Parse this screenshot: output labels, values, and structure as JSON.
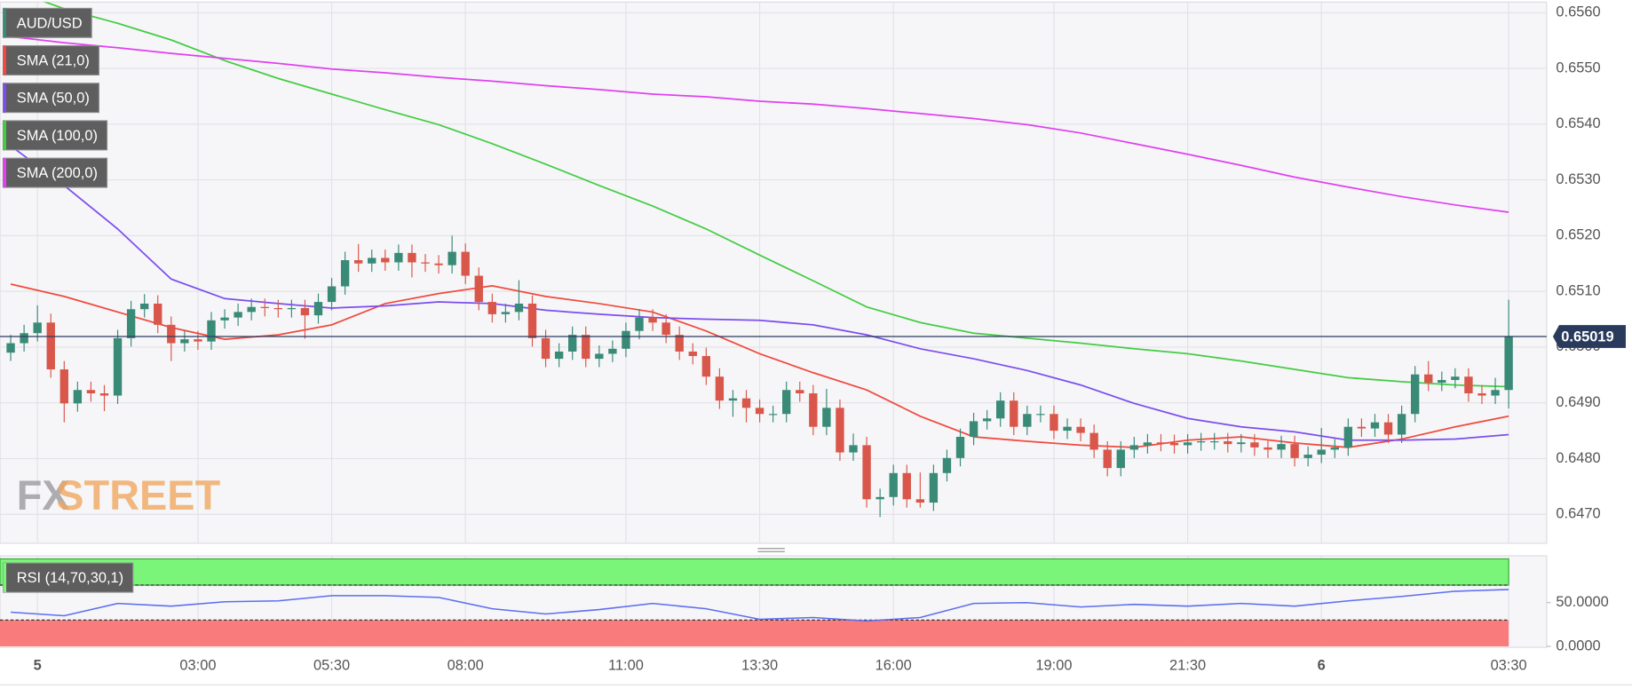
{
  "chart_data": [
    {
      "type": "candlestick",
      "name": "AUD/USD",
      "up_color": "#3a8a78",
      "down_color": "#d9574a",
      "watermark": [
        "FX",
        "STREET"
      ],
      "x": [
        -0.5,
        -0.25,
        0,
        0.25,
        0.5,
        0.75,
        1,
        1.25,
        1.5,
        1.75,
        2,
        2.25,
        2.5,
        2.75,
        3,
        3.25,
        3.5,
        3.75,
        4,
        4.25,
        4.5,
        4.75,
        5,
        5.25,
        5.5,
        5.75,
        6,
        6.25,
        6.5,
        6.75,
        7,
        7.25,
        7.5,
        7.75,
        8,
        8.25,
        8.5,
        8.75,
        9,
        9.25,
        9.5,
        9.75,
        10,
        10.25,
        10.5,
        10.75,
        11,
        11.25,
        11.5,
        11.75,
        12,
        12.25,
        12.5,
        12.75,
        13,
        13.25,
        13.5,
        13.75,
        14,
        14.25,
        14.5,
        14.75,
        15,
        15.25,
        15.5,
        15.75,
        16,
        16.25,
        16.5,
        16.75,
        17,
        17.25,
        17.5,
        17.75,
        18,
        18.25,
        18.5,
        18.75,
        19,
        19.25,
        19.5,
        19.75,
        20,
        20.25,
        20.5,
        20.75,
        21,
        21.25,
        21.5,
        21.75,
        22,
        22.25,
        22.5,
        22.75,
        23,
        23.25,
        23.5,
        23.75,
        24,
        24.25,
        24.5,
        24.75,
        25,
        25.25,
        25.5,
        25.75,
        26,
        26.25,
        26.5,
        26.75,
        27,
        27.25,
        27.5
      ],
      "open": [
        0.6499,
        0.65007,
        0.65025,
        0.65044,
        0.6496,
        0.64899,
        0.64923,
        0.64917,
        0.64913,
        0.65016,
        0.65068,
        0.65078,
        0.6504,
        0.65007,
        0.65014,
        0.6501,
        0.65048,
        0.65053,
        0.65063,
        0.65072,
        0.6507,
        0.65068,
        0.6507,
        0.65057,
        0.65081,
        0.65109,
        0.65156,
        0.6515,
        0.6516,
        0.65152,
        0.65169,
        0.65152,
        0.6515,
        0.65147,
        0.65171,
        0.65128,
        0.65081,
        0.65059,
        0.65063,
        0.65078,
        0.65016,
        0.64979,
        0.64992,
        0.65022,
        0.64979,
        0.64988,
        0.64997,
        0.65029,
        0.65053,
        0.65044,
        0.65022,
        0.64992,
        0.64984,
        0.64947,
        0.64904,
        0.64908,
        0.64891,
        0.6488,
        0.6488,
        0.64923,
        0.64917,
        0.64857,
        0.64891,
        0.64811,
        0.64824,
        0.64727,
        0.64731,
        0.64774,
        0.64727,
        0.64721,
        0.64774,
        0.64801,
        0.64839,
        0.64867,
        0.64872,
        0.64904,
        0.64857,
        0.6488,
        0.6488,
        0.6485,
        0.64857,
        0.64846,
        0.64816,
        0.64783,
        0.64816,
        0.64824,
        0.64829,
        0.64828,
        0.64824,
        0.64829,
        0.64831,
        0.64831,
        0.64826,
        0.64829,
        0.6482,
        0.64816,
        0.64826,
        0.64801,
        0.64807,
        0.64816,
        0.6482,
        0.64857,
        0.64854,
        0.64865,
        0.64843,
        0.6488,
        0.64951,
        0.64936,
        0.64941,
        0.64947,
        0.64917,
        0.64913,
        0.64923
      ],
      "high": [
        0.65022,
        0.6504,
        0.65075,
        0.6506,
        0.64975,
        0.64938,
        0.64938,
        0.64932,
        0.65031,
        0.65083,
        0.65095,
        0.65093,
        0.65055,
        0.65029,
        0.65029,
        0.65063,
        0.65068,
        0.65078,
        0.65087,
        0.65087,
        0.65085,
        0.65085,
        0.65085,
        0.65096,
        0.65124,
        0.65171,
        0.65185,
        0.65175,
        0.65175,
        0.65184,
        0.65184,
        0.65167,
        0.65165,
        0.652,
        0.65186,
        0.65143,
        0.65096,
        0.65078,
        0.6512,
        0.65093,
        0.65031,
        0.65007,
        0.65037,
        0.65037,
        0.65003,
        0.65012,
        0.65044,
        0.65068,
        0.65068,
        0.65059,
        0.65037,
        0.65007,
        0.64999,
        0.64962,
        0.64923,
        0.64923,
        0.64906,
        0.64895,
        0.64938,
        0.64938,
        0.64932,
        0.64925,
        0.64906,
        0.64845,
        0.64839,
        0.64746,
        0.64789,
        0.64789,
        0.64775,
        0.64789,
        0.64816,
        0.64854,
        0.64882,
        0.64887,
        0.64919,
        0.64919,
        0.64895,
        0.64895,
        0.64895,
        0.64872,
        0.64872,
        0.64861,
        0.64831,
        0.64831,
        0.64839,
        0.64844,
        0.64844,
        0.64843,
        0.64844,
        0.64846,
        0.64846,
        0.64846,
        0.64844,
        0.64844,
        0.64835,
        0.64841,
        0.64841,
        0.64822,
        0.64855,
        0.64835,
        0.64872,
        0.64872,
        0.6488,
        0.6488,
        0.64895,
        0.64966,
        0.64975,
        0.64956,
        0.64962,
        0.64962,
        0.64932,
        0.64945,
        0.65085
      ],
      "low": [
        0.64975,
        0.64992,
        0.6501,
        0.64945,
        0.64865,
        0.64884,
        0.64902,
        0.64885,
        0.64898,
        0.65001,
        0.65053,
        0.65025,
        0.64975,
        0.64992,
        0.64995,
        0.64995,
        0.65033,
        0.65038,
        0.65048,
        0.65055,
        0.65053,
        0.65053,
        0.65015,
        0.65042,
        0.65066,
        0.65094,
        0.65135,
        0.65135,
        0.65137,
        0.65137,
        0.65125,
        0.65135,
        0.65132,
        0.65132,
        0.65113,
        0.65066,
        0.65044,
        0.65044,
        0.65048,
        0.65001,
        0.64964,
        0.64964,
        0.64977,
        0.64964,
        0.64964,
        0.64973,
        0.64982,
        0.65014,
        0.65029,
        0.65007,
        0.64977,
        0.64969,
        0.64932,
        0.64889,
        0.64875,
        0.64865,
        0.64865,
        0.64865,
        0.64865,
        0.64902,
        0.64842,
        0.64842,
        0.64796,
        0.64796,
        0.64712,
        0.64695,
        0.64716,
        0.64712,
        0.64712,
        0.64706,
        0.64759,
        0.64786,
        0.64824,
        0.64852,
        0.64857,
        0.64842,
        0.64842,
        0.64865,
        0.64835,
        0.64835,
        0.64831,
        0.64801,
        0.64768,
        0.64768,
        0.64801,
        0.64809,
        0.64813,
        0.64809,
        0.64809,
        0.64814,
        0.64816,
        0.64811,
        0.64811,
        0.64805,
        0.64801,
        0.64801,
        0.64786,
        0.64786,
        0.64792,
        0.64801,
        0.64805,
        0.64839,
        0.64839,
        0.64828,
        0.64828,
        0.64865,
        0.64921,
        0.64921,
        0.64926,
        0.64902,
        0.64898,
        0.64898,
        0.6489
      ],
      "close": [
        0.65007,
        0.65025,
        0.65044,
        0.6496,
        0.64899,
        0.64923,
        0.64917,
        0.64913,
        0.65016,
        0.65068,
        0.65078,
        0.6504,
        0.65007,
        0.65014,
        0.6501,
        0.65048,
        0.65053,
        0.65063,
        0.65072,
        0.6507,
        0.65068,
        0.6507,
        0.65057,
        0.65081,
        0.65109,
        0.65156,
        0.6515,
        0.6516,
        0.65152,
        0.65169,
        0.65152,
        0.6515,
        0.65147,
        0.65171,
        0.65128,
        0.65081,
        0.65059,
        0.65063,
        0.65078,
        0.65016,
        0.64979,
        0.64992,
        0.65022,
        0.64979,
        0.64988,
        0.64997,
        0.65029,
        0.65053,
        0.65044,
        0.65022,
        0.64992,
        0.64984,
        0.64947,
        0.64904,
        0.64908,
        0.64891,
        0.6488,
        0.6488,
        0.64923,
        0.64917,
        0.64857,
        0.64891,
        0.64811,
        0.64824,
        0.64727,
        0.64731,
        0.64774,
        0.64727,
        0.64721,
        0.64774,
        0.64801,
        0.64839,
        0.64867,
        0.64872,
        0.64904,
        0.64857,
        0.6488,
        0.6488,
        0.6485,
        0.64857,
        0.64846,
        0.64816,
        0.64783,
        0.64816,
        0.64824,
        0.64829,
        0.64828,
        0.64824,
        0.64829,
        0.64831,
        0.64831,
        0.64826,
        0.64829,
        0.6482,
        0.64816,
        0.64826,
        0.64801,
        0.64807,
        0.64816,
        0.6482,
        0.64857,
        0.64854,
        0.64865,
        0.64843,
        0.6488,
        0.64951,
        0.64936,
        0.64941,
        0.64947,
        0.64917,
        0.64913,
        0.64923,
        0.65019
      ],
      "series": [
        {
          "name": "SMA (21,0)",
          "color": "#f04a3e",
          "x": [
            -0.5,
            0.5,
            1.5,
            2.5,
            3.5,
            4.5,
            5.5,
            6.5,
            7.5,
            8.5,
            9.5,
            10.5,
            11.5,
            12.5,
            13.5,
            14.5,
            15.5,
            16.5,
            17.5,
            18.5,
            19.5,
            20.5,
            21.5,
            22.5,
            23.5,
            24.5,
            25.5,
            26.5,
            27.5
          ],
          "values": [
            0.65113,
            0.65091,
            0.65063,
            0.65035,
            0.65014,
            0.65022,
            0.6504,
            0.65078,
            0.65096,
            0.6511,
            0.65091,
            0.65078,
            0.65063,
            0.65029,
            0.64988,
            0.64954,
            0.64923,
            0.64876,
            0.64839,
            0.64831,
            0.64824,
            0.6482,
            0.64833,
            0.64839,
            0.64828,
            0.6482,
            0.64835,
            0.64857,
            0.64876
          ]
        },
        {
          "name": "SMA (50,0)",
          "color": "#7c4dee",
          "x": [
            -0.5,
            0.5,
            1.5,
            2.5,
            3.5,
            4.5,
            5.5,
            6.5,
            7.5,
            8.5,
            9.5,
            10.5,
            11.5,
            12.5,
            13.5,
            14.5,
            15.5,
            16.5,
            17.5,
            18.5,
            19.5,
            20.5,
            21.5,
            22.5,
            23.5,
            24.5,
            25.5,
            26.5,
            27.5
          ],
          "values": [
            0.65361,
            0.6529,
            0.65212,
            0.65122,
            0.65087,
            0.65078,
            0.6507,
            0.65074,
            0.65081,
            0.65078,
            0.65066,
            0.65059,
            0.65053,
            0.6505,
            0.65048,
            0.6504,
            0.65022,
            0.64997,
            0.64979,
            0.64958,
            0.64932,
            0.64899,
            0.64872,
            0.64857,
            0.64848,
            0.64833,
            0.64833,
            0.64835,
            0.64843
          ]
        },
        {
          "name": "SMA (100,0)",
          "color": "#44cc44",
          "x": [
            -0.5,
            0.5,
            1.5,
            2.5,
            3.5,
            4.5,
            5.5,
            6.5,
            7.5,
            8.5,
            9.5,
            10.5,
            11.5,
            12.5,
            13.5,
            14.5,
            15.5,
            16.5,
            17.5,
            18.5,
            19.5,
            20.5,
            21.5,
            22.5,
            23.5,
            24.5,
            25.5,
            26.5,
            27.5
          ],
          "values": [
            0.65641,
            0.65607,
            0.65581,
            0.65551,
            0.65514,
            0.65482,
            0.65454,
            0.65426,
            0.65399,
            0.65365,
            0.65328,
            0.6529,
            0.65253,
            0.65212,
            0.65165,
            0.65119,
            0.65072,
            0.65044,
            0.65025,
            0.65016,
            0.65007,
            0.64997,
            0.64988,
            0.64975,
            0.6496,
            0.64945,
            0.64938,
            0.64932,
            0.64929
          ]
        },
        {
          "name": "SMA (200,0)",
          "color": "#e040f0",
          "x": [
            -0.5,
            0.5,
            1.5,
            2.5,
            3.5,
            4.5,
            5.5,
            6.5,
            7.5,
            8.5,
            9.5,
            10.5,
            11.5,
            12.5,
            13.5,
            14.5,
            15.5,
            16.5,
            17.5,
            18.5,
            19.5,
            20.5,
            21.5,
            22.5,
            23.5,
            24.5,
            25.5,
            26.5,
            27.5
          ],
          "values": [
            0.65557,
            0.65546,
            0.65537,
            0.65527,
            0.65518,
            0.65509,
            0.65499,
            0.65492,
            0.65484,
            0.65477,
            0.65469,
            0.65462,
            0.65454,
            0.65449,
            0.65441,
            0.65436,
            0.65428,
            0.65419,
            0.6541,
            0.65399,
            0.65384,
            0.65365,
            0.65346,
            0.65326,
            0.65305,
            0.65287,
            0.6527,
            0.65255,
            0.65242
          ]
        }
      ],
      "xlim": [
        -0.7,
        28.21
      ],
      "ylim": [
        0.64648,
        0.65619
      ],
      "xticks": [
        {
          "value": 0,
          "label": "5"
        },
        {
          "value": 3,
          "label": "03:00"
        },
        {
          "value": 5.5,
          "label": "05:30"
        },
        {
          "value": 8,
          "label": "08:00"
        },
        {
          "value": 11,
          "label": "11:00"
        },
        {
          "value": 13.5,
          "label": "13:30"
        },
        {
          "value": 16,
          "label": "16:00"
        },
        {
          "value": 19,
          "label": "19:00"
        },
        {
          "value": 21.5,
          "label": "21:30"
        },
        {
          "value": 24,
          "label": "6"
        },
        {
          "value": 27.5,
          "label": "03:30"
        }
      ],
      "yticks": [
        {
          "value": 0.647,
          "label": "0.6470"
        },
        {
          "value": 0.648,
          "label": "0.6480"
        },
        {
          "value": 0.649,
          "label": "0.6490"
        },
        {
          "value": 0.65,
          "label": "0.6500"
        },
        {
          "value": 0.651,
          "label": "0.6510"
        },
        {
          "value": 0.652,
          "label": "0.6520"
        },
        {
          "value": 0.653,
          "label": "0.6530"
        },
        {
          "value": 0.654,
          "label": "0.6540"
        },
        {
          "value": 0.655,
          "label": "0.6550"
        },
        {
          "value": 0.656,
          "label": "0.6560"
        }
      ],
      "grid": true
    },
    {
      "type": "line",
      "name": "RSI (14,70,30,1)",
      "color": "#5b6ef0",
      "overbought": 70,
      "oversold": 30,
      "overbought_color": "#7af57a",
      "oversold_color": "#f97b7b",
      "x": [
        -0.5,
        0.5,
        1.5,
        2.5,
        3.5,
        4.5,
        5.5,
        6.5,
        7.5,
        8.5,
        9.5,
        10.5,
        11.5,
        12.5,
        13.5,
        14.5,
        15.5,
        16.5,
        17.5,
        18.5,
        19.5,
        20.5,
        21.5,
        22.5,
        23.5,
        24.5,
        25.5,
        26.5,
        27.5
      ],
      "values": [
        39,
        35,
        49,
        46,
        51,
        52,
        58,
        58,
        56,
        43,
        37,
        42,
        49,
        43,
        31,
        33,
        29,
        33,
        49,
        50,
        45,
        48,
        46,
        49,
        46,
        52,
        57,
        63,
        65
      ],
      "xlim": [
        -0.7,
        28.21
      ],
      "ylim": [
        0,
        100
      ],
      "yticks": [
        {
          "value": 0,
          "label": "0.0000"
        },
        {
          "value": 50,
          "label": "50.0000"
        }
      ]
    }
  ]
}
